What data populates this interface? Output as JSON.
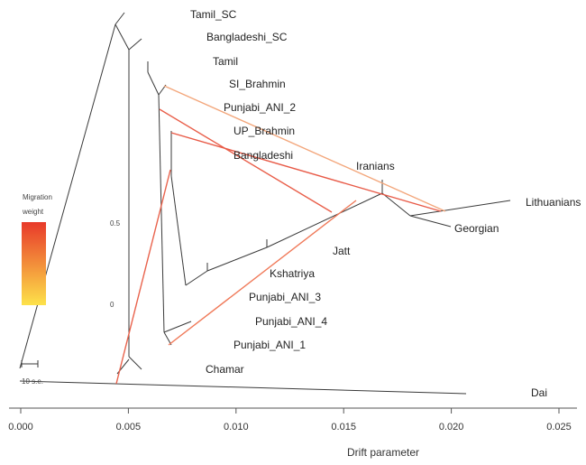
{
  "chart_data": {
    "type": "tree",
    "xlabel": "Drift parameter",
    "xlim": [
      0,
      0.026
    ],
    "x_ticks": [
      {
        "value": 0.0,
        "label": "0.000"
      },
      {
        "value": 0.005,
        "label": "0.005"
      },
      {
        "value": 0.01,
        "label": "0.010"
      },
      {
        "value": 0.015,
        "label": "0.015"
      },
      {
        "value": 0.02,
        "label": "0.020"
      },
      {
        "value": 0.025,
        "label": "0.025"
      }
    ],
    "populations": [
      "Tamil_SC",
      "Bangladeshi_SC",
      "Tamil",
      "SI_Brahmin",
      "Punjabi_ANI_2",
      "UP_Brahmin",
      "Bangladeshi",
      "Iranians",
      "Lithuanians",
      "Georgian",
      "Jatt",
      "Kshatriya",
      "Punjabi_ANI_3",
      "Punjabi_ANI_4",
      "Punjabi_ANI_1",
      "Chamar",
      "Dai"
    ],
    "legend": {
      "title_line1": "Migration",
      "title_line2": "weight",
      "tick_high": "0.5",
      "tick_low": "0",
      "color_high": "#e8392a",
      "color_low": "#fde24a"
    },
    "scale_bar_label": "10 s.e.",
    "branch_color": "#3a3a3a",
    "migration_colors": [
      "#f3a77c",
      "#e95f4a",
      "#e85a47",
      "#e9634d",
      "#f07a5a"
    ]
  }
}
